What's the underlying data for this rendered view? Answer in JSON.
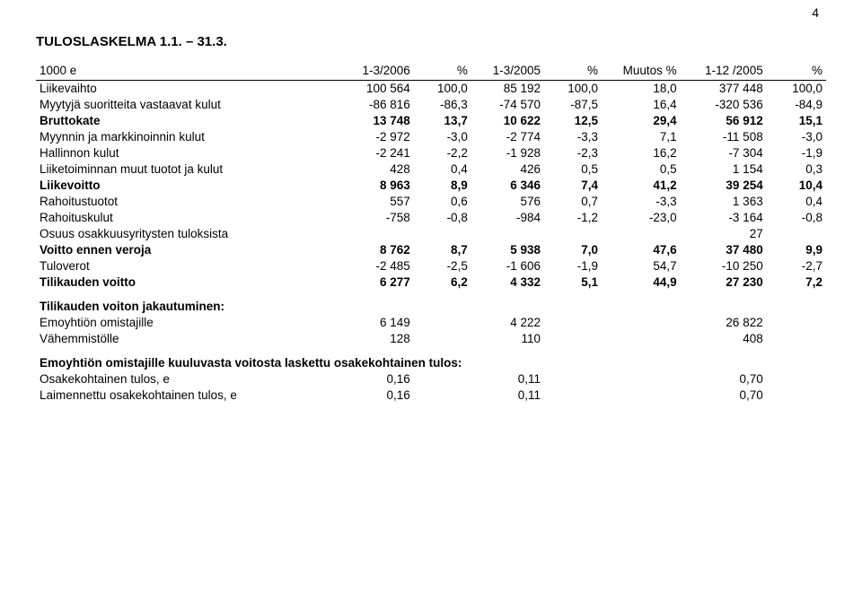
{
  "page_number": "4",
  "title": "TULOSLASKELMA 1.1. – 31.3.",
  "header": {
    "unit": "1000 e",
    "cols": [
      "1-3/2006",
      "%",
      "1-3/2005",
      "%",
      "Muutos %",
      "1-12 /2005",
      "%"
    ]
  },
  "rows": [
    {
      "label": "Liikevaihto",
      "v": [
        "100 564",
        "100,0",
        "85 192",
        "100,0",
        "18,0",
        "377 448",
        "100,0"
      ]
    },
    {
      "label": "Myytyjä suoritteita vastaavat kulut",
      "v": [
        "-86 816",
        "-86,3",
        "-74 570",
        "-87,5",
        "16,4",
        "-320 536",
        "-84,9"
      ]
    },
    {
      "label": "Bruttokate",
      "bold": true,
      "v": [
        "13 748",
        "13,7",
        "10 622",
        "12,5",
        "29,4",
        "56 912",
        "15,1"
      ]
    },
    {
      "label": "Myynnin ja markkinoinnin kulut",
      "v": [
        "-2 972",
        "-3,0",
        "-2 774",
        "-3,3",
        "7,1",
        "-11 508",
        "-3,0"
      ]
    },
    {
      "label": "Hallinnon kulut",
      "v": [
        "-2 241",
        "-2,2",
        "-1 928",
        "-2,3",
        "16,2",
        "-7 304",
        "-1,9"
      ]
    },
    {
      "label": "Liiketoiminnan muut tuotot ja kulut",
      "v": [
        "428",
        "0,4",
        "426",
        "0,5",
        "0,5",
        "1 154",
        "0,3"
      ]
    },
    {
      "label": "Liikevoitto",
      "bold": true,
      "v": [
        "8 963",
        "8,9",
        "6 346",
        "7,4",
        "41,2",
        "39 254",
        "10,4"
      ]
    },
    {
      "label": "Rahoitustuotot",
      "v": [
        "557",
        "0,6",
        "576",
        "0,7",
        "-3,3",
        "1 363",
        "0,4"
      ]
    },
    {
      "label": "Rahoituskulut",
      "v": [
        "-758",
        "-0,8",
        "-984",
        "-1,2",
        "-23,0",
        "-3 164",
        "-0,8"
      ]
    },
    {
      "label": "Osuus osakkuusyritysten tuloksista",
      "v": [
        "",
        "",
        "",
        "",
        "",
        "27",
        ""
      ]
    },
    {
      "label": "Voitto ennen veroja",
      "bold": true,
      "v": [
        "8 762",
        "8,7",
        "5 938",
        "7,0",
        "47,6",
        "37 480",
        "9,9"
      ]
    },
    {
      "label": "Tuloverot",
      "v": [
        "-2 485",
        "-2,5",
        "-1 606",
        "-1,9",
        "54,7",
        "-10 250",
        "-2,7"
      ]
    },
    {
      "label": "Tilikauden voitto",
      "bold": true,
      "v": [
        "6 277",
        "6,2",
        "4 332",
        "5,1",
        "44,9",
        "27 230",
        "7,2"
      ]
    }
  ],
  "dist_heading": "Tilikauden voiton jakautuminen:",
  "dist_rows": [
    {
      "label": "Emoyhtiön omistajille",
      "v": [
        "6 149",
        "",
        "4 222",
        "",
        "",
        "26 822",
        ""
      ]
    },
    {
      "label": "Vähemmistölle",
      "v": [
        "128",
        "",
        "110",
        "",
        "",
        "408",
        ""
      ]
    }
  ],
  "eps_intro": "Emoyhtiön omistajille kuuluvasta voitosta laskettu osakekohtainen tulos:",
  "eps_rows": [
    {
      "label": "Osakekohtainen tulos, e",
      "v": [
        "0,16",
        "",
        "0,11",
        "",
        "",
        "0,70",
        ""
      ]
    },
    {
      "label": "Laimennettu osakekohtainen tulos, e",
      "v": [
        "0,16",
        "",
        "0,11",
        "",
        "",
        "0,70",
        ""
      ]
    }
  ]
}
